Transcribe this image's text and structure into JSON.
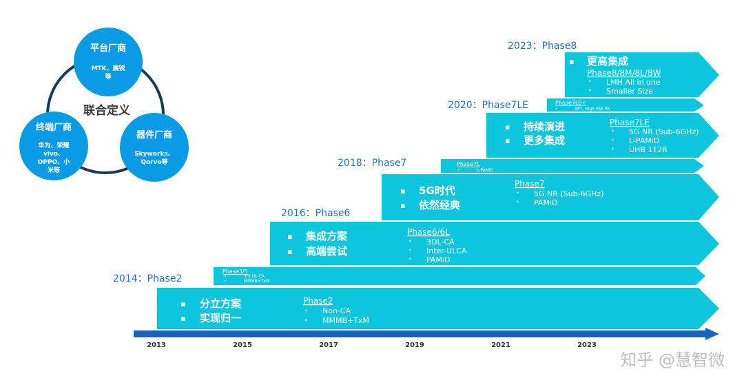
{
  "alliance": {
    "center": "联合定义",
    "platform": {
      "title": "平台厂商",
      "desc": [
        "MTK、展锐",
        "等"
      ]
    },
    "terminal": {
      "title": "终端厂商",
      "desc": [
        "华为、荣耀",
        "vivo、",
        "OPPO、小",
        "米等"
      ]
    },
    "device": {
      "title": "器件厂商",
      "desc": [
        "Skyworks、",
        "Qorvo等"
      ]
    }
  },
  "timeline": {
    "ticks": [
      "2013",
      "2015",
      "2017",
      "2019",
      "2021",
      "2023"
    ]
  },
  "phases": {
    "p2": {
      "year": "2014：Phase2",
      "bullets": [
        "分立方案",
        "实现归一"
      ],
      "name": "Phase2",
      "items": [
        "Non-CA",
        "MMMB+TxM"
      ]
    },
    "p35": {
      "name": "Phase3/5",
      "items": [
        "3/5 DL-CA",
        "MMMB+TxM"
      ]
    },
    "p6": {
      "year": "2016：Phase6",
      "bullets": [
        "集成方案",
        "高端尝试"
      ],
      "name": "Phase6/6L",
      "items": [
        "3DL-CA",
        "Inter-ULCA",
        "PAMiD"
      ]
    },
    "p7l": {
      "name": "Phase7L",
      "items": [
        "L-PAMiD"
      ]
    },
    "p7": {
      "year": "2018：Phase7",
      "bullets": [
        "5G时代",
        "依然经典"
      ],
      "name": "Phase7",
      "items": [
        "5G NR (Sub-6GHz)",
        "PAMiD"
      ]
    },
    "p7lep": {
      "name": "Phase7LE+",
      "items": [
        "APT, High PAE PA"
      ]
    },
    "p7le": {
      "year": "2020：Phase7LE",
      "bullets": [
        "持续演进",
        "更多集成"
      ],
      "name": "Phase7LE",
      "items": [
        "5G NR (Sub-6GHz)",
        "L-PAMiD",
        "UHB 1T2R"
      ]
    },
    "p8": {
      "year": "2023：Phase8",
      "bullets": [
        "更高集成"
      ],
      "name": "Phase8/8M/8L/8W",
      "items": [
        "LMH All in one",
        "Smaller Size"
      ]
    }
  },
  "watermark": "知乎 @慧智微",
  "colors": {
    "cyan": "#0cc6de",
    "ring": "#1b3a55",
    "circle": "#0a9be6",
    "axis": "#1565c0",
    "year_text": "#1e73b9"
  }
}
